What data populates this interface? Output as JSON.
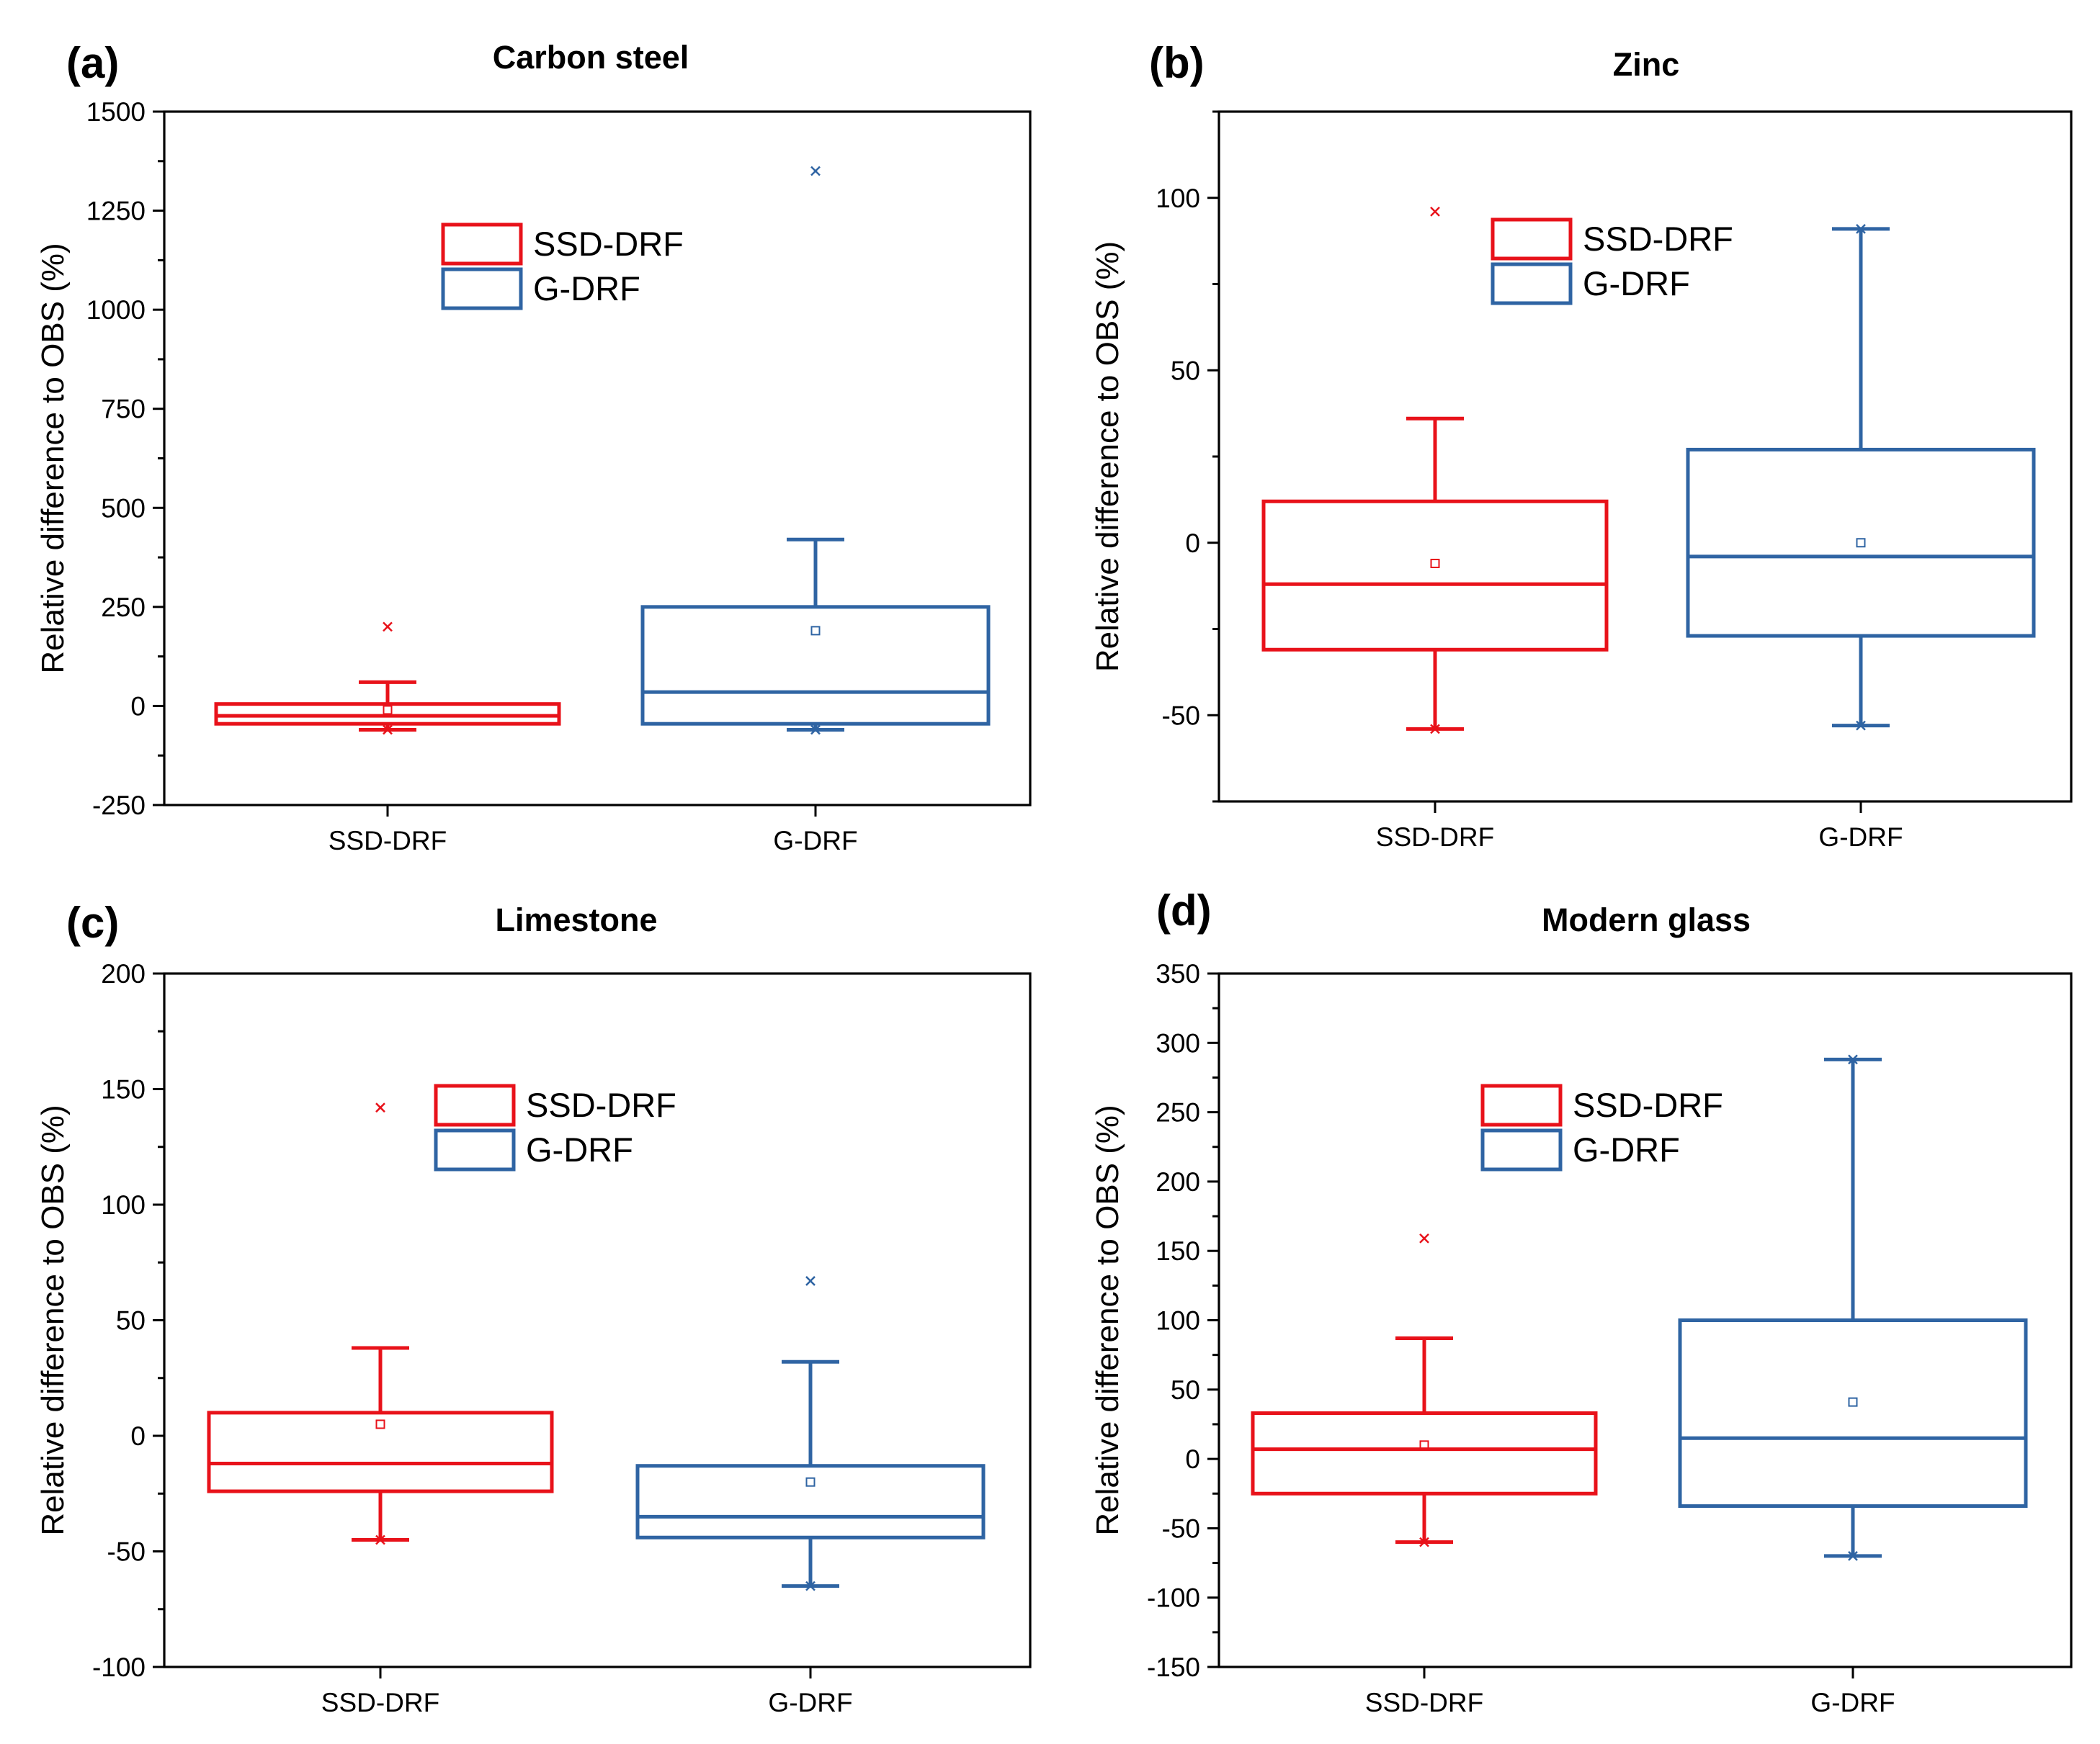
{
  "colors": {
    "ssd": "#e8121a",
    "g": "#2f64a3"
  },
  "legend": [
    "SSD-DRF",
    "G-DRF"
  ],
  "chart_data": [
    {
      "type": "box",
      "panel": "(a)",
      "title": "Carbon steel",
      "ylabel": "Relative difference to OBS (%)",
      "ylim": [
        -250,
        1500
      ],
      "yticks": [
        -250,
        0,
        250,
        500,
        750,
        1000,
        1250,
        1500
      ],
      "ytick_labels": [
        "-250",
        "0",
        "250",
        "500",
        "750",
        "1000",
        "1250",
        "1500"
      ],
      "categories": [
        "SSD-DRF",
        "G-DRF"
      ],
      "boxes": [
        {
          "name": "SSD-DRF",
          "whisker_low": -60,
          "q1": -45,
          "median": -25,
          "q3": 5,
          "whisker_high": 60,
          "mean": -10,
          "max_outlier": 200,
          "min_outlier": -60
        },
        {
          "name": "G-DRF",
          "whisker_low": -60,
          "q1": -45,
          "median": 35,
          "q3": 250,
          "whisker_high": 420,
          "mean": 190,
          "max_outlier": 1350,
          "min_outlier": -60
        }
      ],
      "legend_position": "top-center"
    },
    {
      "type": "box",
      "panel": "(b)",
      "title": "Zinc",
      "ylabel": "Relative difference to OBS (%)",
      "ylim": [
        -75,
        125
      ],
      "yticks": [
        -50,
        0,
        50,
        100
      ],
      "ytick_labels": [
        "-50",
        "0",
        "50",
        "100"
      ],
      "categories": [
        "SSD-DRF",
        "G-DRF"
      ],
      "boxes": [
        {
          "name": "SSD-DRF",
          "whisker_low": -54,
          "q1": -31,
          "median": -12,
          "q3": 12,
          "whisker_high": 36,
          "mean": -6,
          "max_outlier": 96,
          "min_outlier": -54
        },
        {
          "name": "G-DRF",
          "whisker_low": -53,
          "q1": -27,
          "median": -4,
          "q3": 27,
          "whisker_high": 91,
          "mean": 0,
          "max_outlier": 91,
          "min_outlier": -53
        }
      ],
      "legend_position": "top-center"
    },
    {
      "type": "box",
      "panel": "(c)",
      "title": "Limestone",
      "ylabel": "Relative difference to OBS (%)",
      "ylim": [
        -100,
        200
      ],
      "yticks": [
        -100,
        -50,
        0,
        50,
        100,
        150,
        200
      ],
      "ytick_labels": [
        "-100",
        "-50",
        "0",
        "50",
        "100",
        "150",
        "200"
      ],
      "categories": [
        "SSD-DRF",
        "G-DRF"
      ],
      "boxes": [
        {
          "name": "SSD-DRF",
          "whisker_low": -45,
          "q1": -24,
          "median": -12,
          "q3": 10,
          "whisker_high": 38,
          "mean": 5,
          "max_outlier": 142,
          "min_outlier": -45
        },
        {
          "name": "G-DRF",
          "whisker_low": -65,
          "q1": -44,
          "median": -35,
          "q3": -13,
          "whisker_high": 32,
          "mean": -20,
          "max_outlier": 67,
          "min_outlier": -65
        }
      ],
      "legend_position": "top-center"
    },
    {
      "type": "box",
      "panel": "(d)",
      "title": "Modern glass",
      "ylabel": "Relative difference to OBS (%)",
      "ylim": [
        -150,
        350
      ],
      "yticks": [
        -150,
        -100,
        -50,
        0,
        50,
        100,
        150,
        200,
        250,
        300,
        350
      ],
      "ytick_labels": [
        "-150",
        "-100",
        "-50",
        "0",
        "50",
        "100",
        "150",
        "200",
        "250",
        "300",
        "350"
      ],
      "categories": [
        "SSD-DRF",
        "G-DRF"
      ],
      "boxes": [
        {
          "name": "SSD-DRF",
          "whisker_low": -60,
          "q1": -25,
          "median": 7,
          "q3": 33,
          "whisker_high": 87,
          "mean": 10,
          "max_outlier": 159,
          "min_outlier": -60
        },
        {
          "name": "G-DRF",
          "whisker_low": -70,
          "q1": -34,
          "median": 15,
          "q3": 100,
          "whisker_high": 288,
          "mean": 41,
          "max_outlier": 288,
          "min_outlier": -70
        }
      ],
      "legend_position": "top-center"
    }
  ]
}
